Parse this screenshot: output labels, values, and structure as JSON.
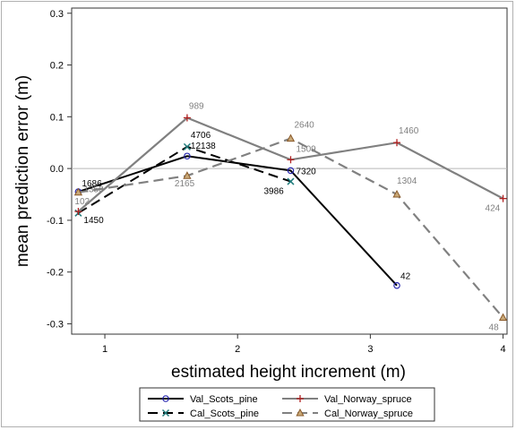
{
  "chart_data": {
    "type": "line",
    "title": "",
    "xlabel": "estimated height increment (m)",
    "ylabel": "mean prediction error (m)",
    "xlim": [
      0.75,
      4.03
    ],
    "ylim": [
      -0.32,
      0.31
    ],
    "xticks": [
      "1",
      "2",
      "3",
      "4"
    ],
    "yticks": [
      "0.3",
      "0.2",
      "0.1",
      "0.0",
      "-0.1",
      "-0.2",
      "-0.3"
    ],
    "reference_line_y": 0,
    "grid": false,
    "legend_position": "bottom",
    "series": [
      {
        "name": "Val_Scots_pine",
        "color": "#000000",
        "marker": "circle",
        "marker_color": "#2a2ab0",
        "dash": "solid",
        "points": [
          {
            "x": 0.8,
            "y": -0.045,
            "label": "1686"
          },
          {
            "x": 1.62,
            "y": 0.024,
            "label": "12138"
          },
          {
            "x": 2.4,
            "y": -0.004,
            "label": "7320"
          },
          {
            "x": 3.2,
            "y": -0.226,
            "label": "42"
          }
        ]
      },
      {
        "name": "Cal_Scots_pine",
        "color": "#000000",
        "marker": "x",
        "marker_color": "#1e7a7a",
        "dash": "long",
        "points": [
          {
            "x": 0.8,
            "y": -0.086,
            "label": "1450"
          },
          {
            "x": 1.62,
            "y": 0.042,
            "label": "4706"
          },
          {
            "x": 2.4,
            "y": -0.025,
            "label": "3986"
          }
        ]
      },
      {
        "name": "Val_Norway_spruce",
        "color": "#808080",
        "marker": "plus",
        "marker_color": "#b02020",
        "dash": "solid",
        "points": [
          {
            "x": 0.8,
            "y": -0.083,
            "label": "102"
          },
          {
            "x": 1.62,
            "y": 0.098,
            "label": "989"
          },
          {
            "x": 2.4,
            "y": 0.017,
            "label": "1509"
          },
          {
            "x": 3.2,
            "y": 0.05,
            "label": "1460"
          },
          {
            "x": 4.0,
            "y": -0.058,
            "label": "424"
          }
        ]
      },
      {
        "name": "Cal_Norway_spruce",
        "color": "#808080",
        "marker": "triangle",
        "marker_color": "#8a5a2a",
        "dash": "long",
        "points": [
          {
            "x": 0.8,
            "y": -0.046,
            "label": "1350"
          },
          {
            "x": 1.62,
            "y": -0.014,
            "label": "2165"
          },
          {
            "x": 2.4,
            "y": 0.058,
            "label": "2640"
          },
          {
            "x": 3.2,
            "y": -0.05,
            "label": "1304"
          },
          {
            "x": 4.0,
            "y": -0.288,
            "label": "48"
          }
        ]
      }
    ]
  }
}
